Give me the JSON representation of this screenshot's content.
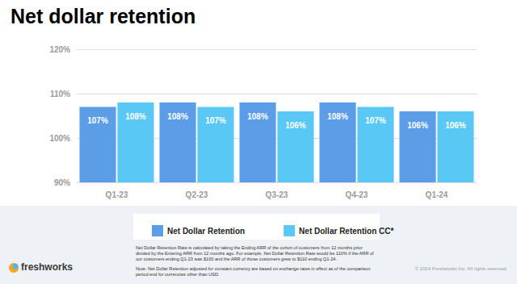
{
  "chart_data": {
    "type": "bar",
    "title": "Net dollar retention",
    "categories": [
      "Q1-23",
      "Q2-23",
      "Q3-23",
      "Q4-23",
      "Q1-24"
    ],
    "series": [
      {
        "name": "Net Dollar Retention",
        "color": "#5c9de8",
        "values": [
          107,
          108,
          108,
          108,
          106
        ],
        "value_labels": [
          "107%",
          "108%",
          "108%",
          "108%",
          "106%"
        ]
      },
      {
        "name": "Net Dollar Retention CC*",
        "color": "#5ac8f5",
        "values": [
          108,
          107,
          106,
          107,
          106
        ],
        "value_labels": [
          "108%",
          "107%",
          "106%",
          "107%",
          "106%"
        ]
      }
    ],
    "ylim": [
      90,
      120
    ],
    "yticks": [
      {
        "value": 90,
        "label": "90%"
      },
      {
        "value": 100,
        "label": "100%"
      },
      {
        "value": 110,
        "label": "110%"
      },
      {
        "value": 120,
        "label": "120%"
      }
    ],
    "grid": true,
    "legend": "bottom",
    "data_labels": true,
    "notes": [
      "Net Dollar Retention Rate is calculated by taking the Ending ARR of the cohort of customers from 12 months prior divided by the Entering ARR from 12 months ago. For example, Net Dollar Retention Rate would be 110% if the ARR of our customers ending Q1-23 was $100 and the ARR of those customers grew to $110 ending Q1-24.",
      "Note: Net Dollar Retention adjusted for constant currency are based on exchange rates in effect as of the comparison period end for currencies other than USD."
    ],
    "logo": "freshworks",
    "copyright": "© 2024 Freshworks Inc. All rights reserved."
  }
}
